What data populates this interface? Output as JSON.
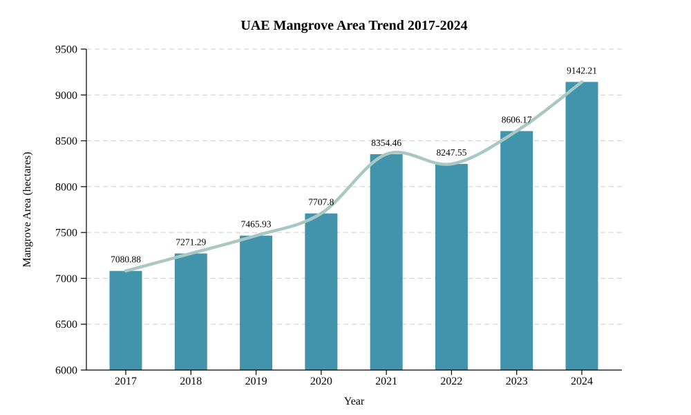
{
  "chart_data": {
    "type": "bar",
    "overlay": "smooth-trend-line",
    "title": "UAE Mangrove Area Trend 2017-2024",
    "xlabel": "Year",
    "ylabel": "Mangrove Area (hectares)",
    "categories": [
      "2017",
      "2018",
      "2019",
      "2020",
      "2021",
      "2022",
      "2023",
      "2024"
    ],
    "values": [
      7080.88,
      7271.29,
      7465.93,
      7707.8,
      8354.46,
      8247.55,
      8606.17,
      9142.21
    ],
    "value_labels": [
      "7080.88",
      "7271.29",
      "7465.93",
      "7707.8",
      "8354.46",
      "8247.55",
      "8606.17",
      "9142.21"
    ],
    "ylim": [
      6000,
      9500
    ],
    "ytick_step": 500,
    "grid": "horizontal-dashed",
    "legend": "none",
    "colors": {
      "bar": "#4294ad",
      "trend_line": "#a9c8c3",
      "gridline": "#cccccc",
      "axis": "#000000"
    }
  }
}
